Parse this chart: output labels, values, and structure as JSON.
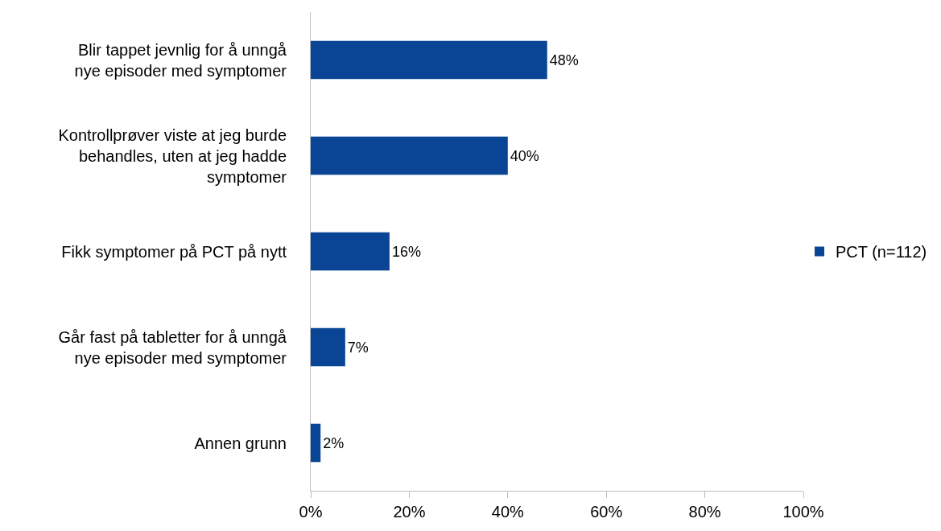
{
  "chart_data": {
    "type": "bar",
    "orientation": "horizontal",
    "categories": [
      "Blir tappet jevnlig for å unngå nye episoder med symptomer",
      "Kontrollprøver viste at jeg burde behandles, uten at jeg hadde symptomer",
      "Fikk symptomer på PCT på nytt",
      "Går fast på tabletter for å unngå nye episoder med symptomer",
      "Annen grunn"
    ],
    "series": [
      {
        "name": "PCT (n=112)",
        "color": "#0a4595",
        "values": [
          48,
          40,
          16,
          7,
          2
        ],
        "value_labels": [
          "48%",
          "40%",
          "16%",
          "7%",
          "2%"
        ]
      }
    ],
    "xlim": [
      0,
      100
    ],
    "xticks": [
      {
        "value": 0,
        "label": "0%"
      },
      {
        "value": 20,
        "label": "20%"
      },
      {
        "value": 40,
        "label": "40%"
      },
      {
        "value": 60,
        "label": "60%"
      },
      {
        "value": 80,
        "label": "80%"
      },
      {
        "value": 100,
        "label": "100%"
      }
    ],
    "grid": false,
    "legend": "right"
  }
}
